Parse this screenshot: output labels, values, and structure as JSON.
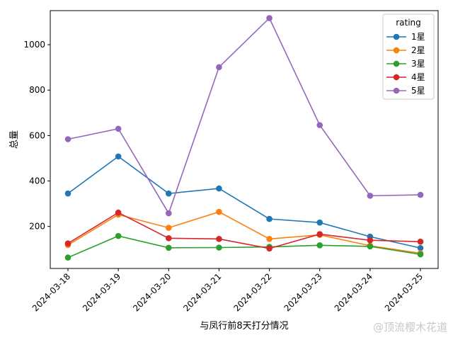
{
  "chart_data": {
    "type": "line",
    "xlabel": "与凤行前8天打分情况",
    "ylabel": "总量",
    "x": [
      "2024-03-18",
      "2024-03-19",
      "2024-03-20",
      "2024-03-21",
      "2024-03-22",
      "2024-03-23",
      "2024-03-24",
      "2024-03-25"
    ],
    "ylim": [
      15,
      1150
    ],
    "yticks": [
      200,
      400,
      600,
      800,
      1000
    ],
    "grid": false,
    "legend": {
      "title": "rating",
      "placement": "top-right"
    },
    "series": [
      {
        "name": "1星",
        "color": "#1f77b4",
        "values": [
          345,
          508,
          345,
          367,
          233,
          217,
          155,
          105
        ]
      },
      {
        "name": "2星",
        "color": "#ff7f0e",
        "values": [
          118,
          252,
          194,
          264,
          145,
          163,
          115,
          82
        ]
      },
      {
        "name": "3星",
        "color": "#2ca02c",
        "values": [
          63,
          158,
          106,
          107,
          110,
          117,
          112,
          77
        ]
      },
      {
        "name": "4星",
        "color": "#d62728",
        "values": [
          125,
          261,
          148,
          145,
          103,
          166,
          139,
          133
        ]
      },
      {
        "name": "5星",
        "color": "#9467bd",
        "values": [
          584,
          630,
          258,
          901,
          1117,
          646,
          335,
          339
        ]
      }
    ]
  },
  "watermark": "@顶流樱木花道"
}
